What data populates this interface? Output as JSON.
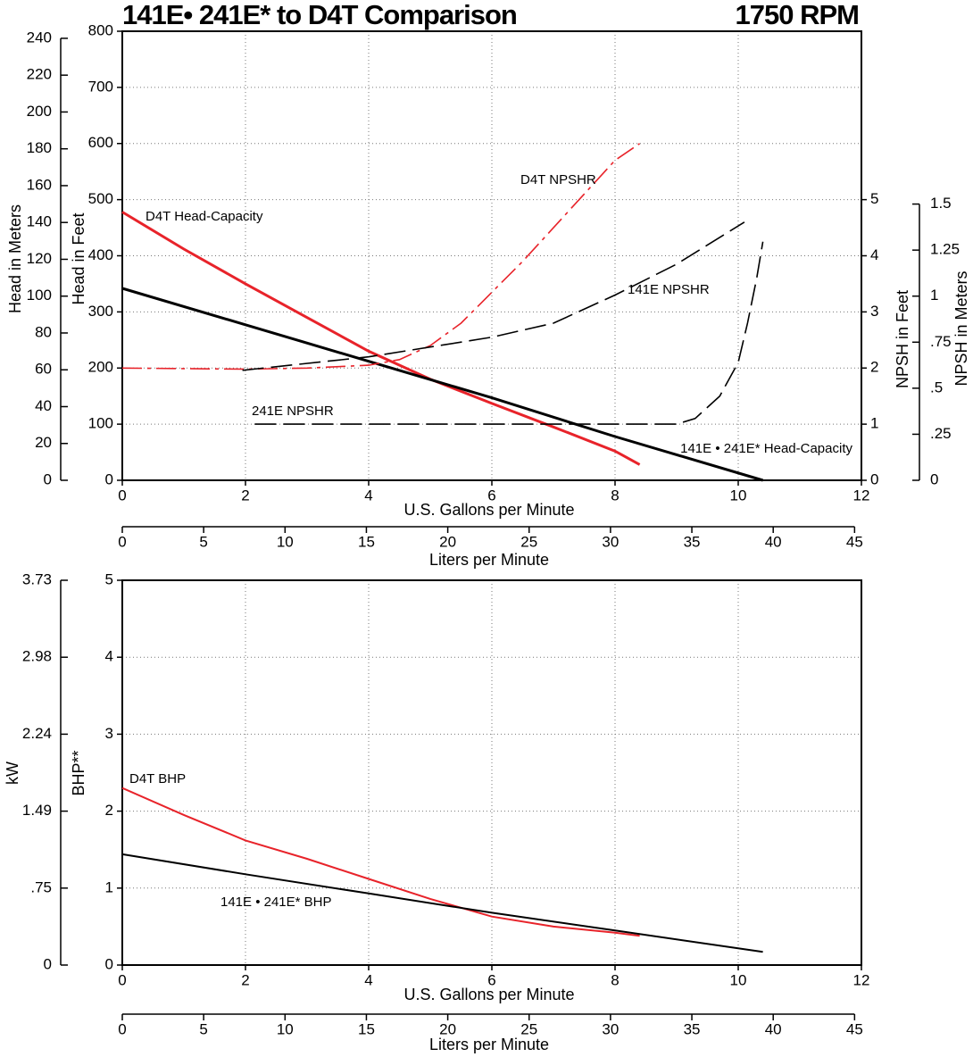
{
  "chart_data": [
    {
      "type": "line",
      "title": "141E• 241E* to D4T Comparison",
      "subtitle": "1750 RPM",
      "x_label": "U.S. Gallons per Minute",
      "xlim": [
        0,
        12
      ],
      "xticks": [
        0,
        2,
        4,
        6,
        8,
        10,
        12
      ],
      "x2_label": "Liters per Minute",
      "x2lim": [
        0,
        45.42
      ],
      "x2ticks": [
        0,
        5,
        10,
        15,
        20,
        25,
        30,
        35,
        40,
        45
      ],
      "y_label": "Head in Feet",
      "ylim": [
        0,
        800
      ],
      "yticks": [
        0,
        100,
        200,
        300,
        400,
        500,
        600,
        700,
        800
      ],
      "y2_label": "NPSH in Feet",
      "y2lim": [
        0,
        8
      ],
      "y2ticks": [
        0,
        1,
        2,
        3,
        4,
        5
      ],
      "y3_label": "Head in Meters",
      "y3lim": [
        0,
        243.84
      ],
      "y3ticks": [
        0,
        20,
        40,
        60,
        80,
        100,
        120,
        140,
        160,
        180,
        200,
        220,
        240
      ],
      "y4_label": "NPSH in Meters",
      "y4lim": [
        0,
        2.4384
      ],
      "y4ticks": [
        0,
        {
          "value": 0.25,
          "label": ".25"
        },
        {
          "value": 0.5,
          "label": ".5"
        },
        {
          "value": 0.75,
          "label": ".75"
        },
        1,
        1.25,
        1.5
      ],
      "grid": true,
      "series": [
        {
          "name": "D4T Head-Capacity",
          "color": "#e8232a",
          "linestyle": "solid",
          "x": [
            0,
            1,
            2,
            3,
            4,
            5,
            6,
            7,
            8,
            8.4
          ],
          "values": [
            478,
            412,
            350,
            290,
            230,
            180,
            137,
            95,
            52,
            28
          ]
        },
        {
          "name": "141E • 241E* Head-Capacity",
          "color": "#000000",
          "linestyle": "solid",
          "x": [
            0,
            2,
            4,
            6,
            8,
            10.4
          ],
          "values": [
            342,
            277,
            212,
            147,
            78,
            0
          ]
        },
        {
          "name": "D4T NPSHR",
          "color": "#e8232a",
          "linestyle": "dashdot",
          "axis": "y2",
          "x": [
            0,
            2,
            3,
            4,
            4.5,
            5,
            5.5,
            6,
            6.5,
            7,
            7.5,
            8,
            8.4
          ],
          "values": [
            2.0,
            1.98,
            2.0,
            2.05,
            2.15,
            2.4,
            2.8,
            3.35,
            3.9,
            4.5,
            5.1,
            5.7,
            6.0
          ]
        },
        {
          "name": "141E NPSHR",
          "color": "#000000",
          "label_color": "#1e7b4f",
          "linestyle": "dashed",
          "axis": "y2",
          "x": [
            1.95,
            4,
            6,
            7,
            8,
            9,
            10.1
          ],
          "values": [
            1.96,
            2.2,
            2.55,
            2.8,
            3.3,
            3.85,
            4.6
          ]
        },
        {
          "name": "241E NPSHR",
          "color": "#000000",
          "label_color": "#1e7b4f",
          "linestyle": "dashed",
          "axis": "y2",
          "x": [
            2.15,
            9,
            9.3,
            9.7,
            10,
            10.15,
            10.3,
            10.4
          ],
          "values": [
            1.0,
            1.0,
            1.1,
            1.5,
            2.1,
            2.8,
            3.6,
            4.25
          ]
        }
      ]
    },
    {
      "type": "line",
      "x_label": "U.S. Gallons per Minute",
      "xlim": [
        0,
        12
      ],
      "xticks": [
        0,
        2,
        4,
        6,
        8,
        10,
        12
      ],
      "x2_label": "Liters per Minute",
      "x2lim": [
        0,
        45.42
      ],
      "x2ticks": [
        0,
        5,
        10,
        15,
        20,
        25,
        30,
        35,
        40,
        45
      ],
      "y_label": "BHP**",
      "ylim": [
        0,
        5
      ],
      "yticks": [
        0,
        1,
        2,
        3,
        4,
        5
      ],
      "y3_label": "kW",
      "y3lim": [
        0,
        3.7285
      ],
      "y3ticks": [
        0,
        {
          "value": 0.7457,
          "label": ".75"
        },
        {
          "value": 1.4914,
          "label": "1.49"
        },
        {
          "value": 2.2371,
          "label": "2.24"
        },
        {
          "value": 2.9828,
          "label": "2.98"
        },
        {
          "value": 3.7285,
          "label": "3.73"
        }
      ],
      "grid": true,
      "series": [
        {
          "name": "D4T BHP",
          "color": "#e8232a",
          "linestyle": "solid",
          "x": [
            0,
            1,
            2,
            3,
            4,
            5,
            6,
            7,
            8,
            8.4
          ],
          "values": [
            2.3,
            1.95,
            1.62,
            1.38,
            1.12,
            0.86,
            0.63,
            0.5,
            0.42,
            0.38
          ]
        },
        {
          "name": "141E • 241E* BHP",
          "color": "#000000",
          "linestyle": "solid",
          "x": [
            0,
            2,
            4,
            6,
            8,
            10.4
          ],
          "values": [
            1.44,
            1.18,
            0.93,
            0.68,
            0.45,
            0.17
          ]
        }
      ]
    }
  ]
}
